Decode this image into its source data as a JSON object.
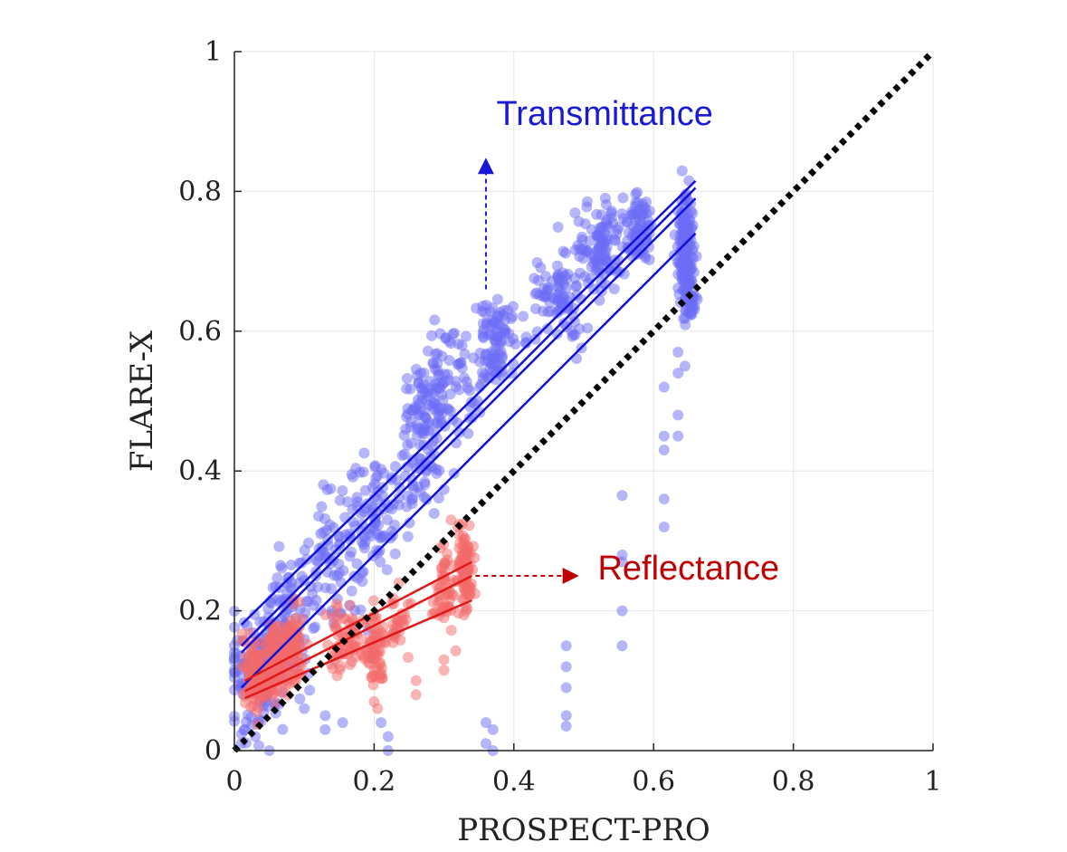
{
  "chart_data": {
    "type": "scatter",
    "xlabel": "PROSPECT-PRO",
    "ylabel": "FLARE-X",
    "xlim": [
      0,
      1
    ],
    "ylim": [
      0,
      1
    ],
    "xticks": [
      0,
      0.2,
      0.4,
      0.6,
      0.8,
      1
    ],
    "yticks": [
      0,
      0.2,
      0.4,
      0.6,
      0.8,
      1
    ],
    "xtick_labels": [
      "0",
      "0.2",
      "0.4",
      "0.6",
      "0.8",
      "1"
    ],
    "ytick_labels": [
      "0",
      "0.2",
      "0.4",
      "0.6",
      "0.8",
      "1"
    ],
    "grid": true,
    "one_to_one_line": {
      "from": [
        0,
        0
      ],
      "to": [
        1,
        1
      ],
      "style": "dotted",
      "color": "#000000"
    },
    "annotations": [
      {
        "name": "transmittance",
        "text": "Transmittance",
        "color": "#1a1ad6",
        "x": 0.375,
        "y": 0.895
      },
      {
        "name": "reflectance",
        "text": "Reflectance",
        "color": "#c00000",
        "x": 0.52,
        "y": 0.245
      }
    ],
    "arrows": [
      {
        "name": "transmittance-arrow",
        "from": [
          0.36,
          0.66
        ],
        "to": [
          0.36,
          0.83
        ],
        "color": "#1a1ad6"
      },
      {
        "name": "reflectance-arrow",
        "from": [
          0.345,
          0.25
        ],
        "to": [
          0.475,
          0.25
        ],
        "color": "#c00000"
      }
    ],
    "series": [
      {
        "name": "Transmittance",
        "color": "#6b6bf5",
        "opacity": 0.5,
        "clusters": [
          {
            "x": 0.02,
            "y": 0.1,
            "spread": 0.04,
            "yspread": 0.09,
            "n": 70
          },
          {
            "x": 0.05,
            "y": 0.14,
            "spread": 0.03,
            "yspread": 0.09,
            "n": 70
          },
          {
            "x": 0.085,
            "y": 0.18,
            "spread": 0.03,
            "yspread": 0.09,
            "n": 70
          },
          {
            "x": 0.14,
            "y": 0.27,
            "spread": 0.05,
            "yspread": 0.1,
            "n": 80
          },
          {
            "x": 0.2,
            "y": 0.33,
            "spread": 0.04,
            "yspread": 0.1,
            "n": 80
          },
          {
            "x": 0.27,
            "y": 0.45,
            "spread": 0.04,
            "yspread": 0.11,
            "n": 110
          },
          {
            "x": 0.31,
            "y": 0.53,
            "spread": 0.04,
            "yspread": 0.1,
            "n": 80
          },
          {
            "x": 0.375,
            "y": 0.58,
            "spread": 0.03,
            "yspread": 0.07,
            "n": 90
          },
          {
            "x": 0.46,
            "y": 0.65,
            "spread": 0.05,
            "yspread": 0.07,
            "n": 90
          },
          {
            "x": 0.53,
            "y": 0.72,
            "spread": 0.04,
            "yspread": 0.06,
            "n": 110
          },
          {
            "x": 0.58,
            "y": 0.75,
            "spread": 0.02,
            "yspread": 0.05,
            "n": 70
          },
          {
            "x": 0.645,
            "y": 0.72,
            "spread": 0.012,
            "yspread": 0.08,
            "n": 160
          },
          {
            "x": 0.65,
            "y": 0.65,
            "spread": 0.012,
            "yspread": 0.05,
            "n": 40
          }
        ],
        "outliers": [
          [
            0.01,
            0.01
          ],
          [
            0.015,
            0.03
          ],
          [
            0.03,
            0.02
          ],
          [
            0.05,
            0.0
          ],
          [
            0.1,
            0.06
          ],
          [
            0.13,
            0.03
          ],
          [
            0.13,
            0.05
          ],
          [
            0.155,
            0.04
          ],
          [
            0.21,
            0.04
          ],
          [
            0.22,
            0.0
          ],
          [
            0.22,
            0.02
          ],
          [
            0.36,
            0.04
          ],
          [
            0.37,
            0.03
          ],
          [
            0.37,
            0.0
          ],
          [
            0.36,
            0.01
          ],
          [
            0.475,
            0.15
          ],
          [
            0.475,
            0.12
          ],
          [
            0.475,
            0.09
          ],
          [
            0.475,
            0.05
          ],
          [
            0.475,
            0.035
          ],
          [
            0.555,
            0.365
          ],
          [
            0.555,
            0.28
          ],
          [
            0.555,
            0.27
          ],
          [
            0.555,
            0.2
          ],
          [
            0.555,
            0.15
          ],
          [
            0.615,
            0.45
          ],
          [
            0.615,
            0.43
          ],
          [
            0.615,
            0.36
          ],
          [
            0.615,
            0.32
          ],
          [
            0.615,
            0.52
          ],
          [
            0.635,
            0.57
          ],
          [
            0.635,
            0.54
          ],
          [
            0.635,
            0.48
          ],
          [
            0.635,
            0.45
          ],
          [
            0.645,
            0.55
          ]
        ],
        "fit_lines": [
          {
            "x": [
              0.01,
              0.66
            ],
            "y": [
              0.18,
              0.815
            ]
          },
          {
            "x": [
              0.01,
              0.66
            ],
            "y": [
              0.15,
              0.805
            ]
          },
          {
            "x": [
              0.01,
              0.66
            ],
            "y": [
              0.14,
              0.79
            ]
          },
          {
            "x": [
              0.01,
              0.66
            ],
            "y": [
              0.09,
              0.74
            ]
          }
        ],
        "fit_color": "#1010d8"
      },
      {
        "name": "Reflectance",
        "color": "#f46a6a",
        "opacity": 0.5,
        "clusters": [
          {
            "x": 0.03,
            "y": 0.11,
            "spread": 0.02,
            "yspread": 0.06,
            "n": 90
          },
          {
            "x": 0.06,
            "y": 0.13,
            "spread": 0.02,
            "yspread": 0.06,
            "n": 90
          },
          {
            "x": 0.085,
            "y": 0.15,
            "spread": 0.015,
            "yspread": 0.06,
            "n": 70
          },
          {
            "x": 0.16,
            "y": 0.16,
            "spread": 0.03,
            "yspread": 0.05,
            "n": 60
          },
          {
            "x": 0.2,
            "y": 0.15,
            "spread": 0.015,
            "yspread": 0.06,
            "n": 60
          },
          {
            "x": 0.235,
            "y": 0.18,
            "spread": 0.02,
            "yspread": 0.05,
            "n": 30
          },
          {
            "x": 0.3,
            "y": 0.23,
            "spread": 0.015,
            "yspread": 0.06,
            "n": 50
          },
          {
            "x": 0.33,
            "y": 0.26,
            "spread": 0.01,
            "yspread": 0.06,
            "n": 90
          }
        ],
        "outliers": [
          [
            0.26,
            0.1
          ],
          [
            0.26,
            0.08
          ],
          [
            0.3,
            0.13
          ],
          [
            0.3,
            0.115
          ],
          [
            0.31,
            0.33
          ],
          [
            0.32,
            0.32
          ],
          [
            0.205,
            0.06
          ],
          [
            0.2,
            0.07
          ]
        ],
        "fit_lines": [
          {
            "x": [
              0.015,
              0.34
            ],
            "y": [
              0.075,
              0.215
            ]
          },
          {
            "x": [
              0.015,
              0.34
            ],
            "y": [
              0.085,
              0.25
            ]
          },
          {
            "x": [
              0.015,
              0.34
            ],
            "y": [
              0.1,
              0.27
            ]
          }
        ],
        "fit_color": "#e01818"
      }
    ]
  }
}
